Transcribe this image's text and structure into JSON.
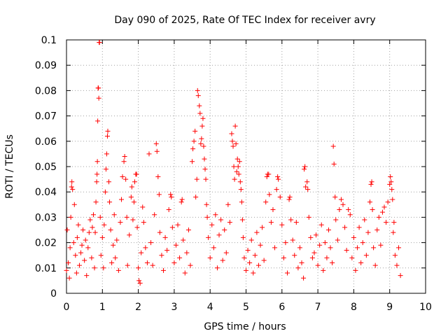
{
  "chart_data": {
    "type": "scatter",
    "title": "Day 090 of 2025, Rate Of TEC Index for receiver avry",
    "xlabel": "GPS time / hours",
    "ylabel": "ROTI / TECUs",
    "xlim": [
      0,
      10
    ],
    "ylim": [
      0,
      0.1
    ],
    "x_ticks": [
      "0",
      "1",
      "2",
      "3",
      "4",
      "5",
      "6",
      "7",
      "8",
      "9",
      "10"
    ],
    "y_ticks": [
      "0",
      "0.01",
      "0.02",
      "0.03",
      "0.04",
      "0.05",
      "0.06",
      "0.07",
      "0.08",
      "0.09",
      "0.1"
    ],
    "grid": true,
    "marker": "+",
    "series_color": "#ff0000",
    "series": [
      {
        "name": "ROTI",
        "points": [
          [
            0.0,
            0.009
          ],
          [
            0.02,
            0.025
          ],
          [
            0.05,
            0.012
          ],
          [
            0.08,
            0.006
          ],
          [
            0.1,
            0.018
          ],
          [
            0.12,
            0.03
          ],
          [
            0.14,
            0.042
          ],
          [
            0.15,
            0.044
          ],
          [
            0.17,
            0.041
          ],
          [
            0.2,
            0.02
          ],
          [
            0.22,
            0.035
          ],
          [
            0.25,
            0.015
          ],
          [
            0.28,
            0.008
          ],
          [
            0.3,
            0.022
          ],
          [
            0.33,
            0.027
          ],
          [
            0.36,
            0.011
          ],
          [
            0.4,
            0.016
          ],
          [
            0.43,
            0.019
          ],
          [
            0.46,
            0.025
          ],
          [
            0.5,
            0.013
          ],
          [
            0.53,
            0.021
          ],
          [
            0.56,
            0.007
          ],
          [
            0.6,
            0.018
          ],
          [
            0.63,
            0.024
          ],
          [
            0.66,
            0.029
          ],
          [
            0.7,
            0.014
          ],
          [
            0.72,
            0.026
          ],
          [
            0.75,
            0.031
          ],
          [
            0.78,
            0.01
          ],
          [
            0.8,
            0.024
          ],
          [
            0.82,
            0.036
          ],
          [
            0.84,
            0.044
          ],
          [
            0.85,
            0.047
          ],
          [
            0.86,
            0.052
          ],
          [
            0.87,
            0.068
          ],
          [
            0.88,
            0.081
          ],
          [
            0.89,
            0.081
          ],
          [
            0.9,
            0.077
          ],
          [
            0.91,
            0.099
          ],
          [
            0.92,
            0.099
          ],
          [
            0.94,
            0.03
          ],
          [
            0.96,
            0.015
          ],
          [
            1.0,
            0.022
          ],
          [
            1.03,
            0.01
          ],
          [
            1.05,
            0.027
          ],
          [
            1.08,
            0.04
          ],
          [
            1.1,
            0.049
          ],
          [
            1.12,
            0.055
          ],
          [
            1.14,
            0.062
          ],
          [
            1.15,
            0.064
          ],
          [
            1.18,
            0.044
          ],
          [
            1.2,
            0.036
          ],
          [
            1.23,
            0.025
          ],
          [
            1.26,
            0.012
          ],
          [
            1.3,
            0.019
          ],
          [
            1.33,
            0.031
          ],
          [
            1.36,
            0.014
          ],
          [
            1.4,
            0.021
          ],
          [
            1.45,
            0.009
          ],
          [
            1.5,
            0.028
          ],
          [
            1.53,
            0.037
          ],
          [
            1.56,
            0.046
          ],
          [
            1.6,
            0.052
          ],
          [
            1.62,
            0.054
          ],
          [
            1.65,
            0.045
          ],
          [
            1.68,
            0.03
          ],
          [
            1.7,
            0.011
          ],
          [
            1.75,
            0.023
          ],
          [
            1.8,
            0.038
          ],
          [
            1.82,
            0.042
          ],
          [
            1.85,
            0.029
          ],
          [
            1.88,
            0.036
          ],
          [
            1.9,
            0.044
          ],
          [
            1.93,
            0.047
          ],
          [
            1.95,
            0.047
          ],
          [
            1.97,
            0.026
          ],
          [
            2.0,
            0.01
          ],
          [
            2.02,
            0.005
          ],
          [
            2.05,
            0.004
          ],
          [
            2.08,
            0.016
          ],
          [
            2.12,
            0.034
          ],
          [
            2.15,
            0.028
          ],
          [
            2.2,
            0.018
          ],
          [
            2.25,
            0.012
          ],
          [
            2.3,
            0.055
          ],
          [
            2.35,
            0.02
          ],
          [
            2.4,
            0.011
          ],
          [
            2.45,
            0.031
          ],
          [
            2.5,
            0.059
          ],
          [
            2.52,
            0.056
          ],
          [
            2.55,
            0.046
          ],
          [
            2.58,
            0.039
          ],
          [
            2.6,
            0.024
          ],
          [
            2.65,
            0.015
          ],
          [
            2.7,
            0.009
          ],
          [
            2.75,
            0.022
          ],
          [
            2.8,
            0.017
          ],
          [
            2.85,
            0.033
          ],
          [
            2.9,
            0.039
          ],
          [
            2.92,
            0.038
          ],
          [
            2.95,
            0.026
          ],
          [
            3.0,
            0.012
          ],
          [
            3.05,
            0.019
          ],
          [
            3.1,
            0.027
          ],
          [
            3.15,
            0.014
          ],
          [
            3.2,
            0.036
          ],
          [
            3.22,
            0.037
          ],
          [
            3.25,
            0.021
          ],
          [
            3.3,
            0.008
          ],
          [
            3.35,
            0.016
          ],
          [
            3.4,
            0.025
          ],
          [
            3.45,
            0.011
          ],
          [
            3.5,
            0.052
          ],
          [
            3.52,
            0.057
          ],
          [
            3.55,
            0.06
          ],
          [
            3.58,
            0.064
          ],
          [
            3.6,
            0.038
          ],
          [
            3.63,
            0.045
          ],
          [
            3.65,
            0.08
          ],
          [
            3.67,
            0.078
          ],
          [
            3.7,
            0.074
          ],
          [
            3.72,
            0.071
          ],
          [
            3.74,
            0.059
          ],
          [
            3.76,
            0.061
          ],
          [
            3.78,
            0.066
          ],
          [
            3.8,
            0.069
          ],
          [
            3.82,
            0.058
          ],
          [
            3.84,
            0.053
          ],
          [
            3.86,
            0.049
          ],
          [
            3.88,
            0.045
          ],
          [
            3.9,
            0.035
          ],
          [
            3.92,
            0.03
          ],
          [
            3.95,
            0.022
          ],
          [
            4.0,
            0.014
          ],
          [
            4.05,
            0.027
          ],
          [
            4.1,
            0.018
          ],
          [
            4.15,
            0.031
          ],
          [
            4.2,
            0.01
          ],
          [
            4.25,
            0.023
          ],
          [
            4.3,
            0.029
          ],
          [
            4.35,
            0.013
          ],
          [
            4.4,
            0.025
          ],
          [
            4.45,
            0.016
          ],
          [
            4.5,
            0.035
          ],
          [
            4.55,
            0.028
          ],
          [
            4.6,
            0.063
          ],
          [
            4.62,
            0.06
          ],
          [
            4.64,
            0.058
          ],
          [
            4.66,
            0.05
          ],
          [
            4.68,
            0.045
          ],
          [
            4.7,
            0.066
          ],
          [
            4.72,
            0.059
          ],
          [
            4.74,
            0.048
          ],
          [
            4.76,
            0.053
          ],
          [
            4.78,
            0.05
          ],
          [
            4.8,
            0.047
          ],
          [
            4.82,
            0.052
          ],
          [
            4.84,
            0.044
          ],
          [
            4.86,
            0.041
          ],
          [
            4.88,
            0.036
          ],
          [
            4.9,
            0.029
          ],
          [
            4.92,
            0.022
          ],
          [
            4.95,
            0.014
          ],
          [
            5.0,
            0.009
          ],
          [
            5.05,
            0.017
          ],
          [
            5.1,
            0.012
          ],
          [
            5.15,
            0.021
          ],
          [
            5.2,
            0.008
          ],
          [
            5.25,
            0.015
          ],
          [
            5.3,
            0.024
          ],
          [
            5.35,
            0.011
          ],
          [
            5.4,
            0.019
          ],
          [
            5.45,
            0.026
          ],
          [
            5.5,
            0.013
          ],
          [
            5.55,
            0.036
          ],
          [
            5.58,
            0.046
          ],
          [
            5.6,
            0.047
          ],
          [
            5.63,
            0.047
          ],
          [
            5.65,
            0.039
          ],
          [
            5.7,
            0.028
          ],
          [
            5.75,
            0.033
          ],
          [
            5.8,
            0.018
          ],
          [
            5.85,
            0.041
          ],
          [
            5.88,
            0.046
          ],
          [
            5.9,
            0.045
          ],
          [
            5.95,
            0.038
          ],
          [
            6.0,
            0.027
          ],
          [
            6.05,
            0.014
          ],
          [
            6.1,
            0.02
          ],
          [
            6.15,
            0.008
          ],
          [
            6.2,
            0.037
          ],
          [
            6.22,
            0.038
          ],
          [
            6.25,
            0.029
          ],
          [
            6.3,
            0.021
          ],
          [
            6.35,
            0.015
          ],
          [
            6.4,
            0.028
          ],
          [
            6.45,
            0.01
          ],
          [
            6.5,
            0.018
          ],
          [
            6.55,
            0.012
          ],
          [
            6.6,
            0.006
          ],
          [
            6.62,
            0.049
          ],
          [
            6.64,
            0.05
          ],
          [
            6.66,
            0.042
          ],
          [
            6.7,
            0.044
          ],
          [
            6.72,
            0.041
          ],
          [
            6.75,
            0.03
          ],
          [
            6.8,
            0.022
          ],
          [
            6.85,
            0.014
          ],
          [
            6.9,
            0.016
          ],
          [
            6.95,
            0.023
          ],
          [
            7.0,
            0.011
          ],
          [
            7.05,
            0.019
          ],
          [
            7.1,
            0.027
          ],
          [
            7.15,
            0.009
          ],
          [
            7.2,
            0.02
          ],
          [
            7.25,
            0.014
          ],
          [
            7.3,
            0.025
          ],
          [
            7.35,
            0.018
          ],
          [
            7.4,
            0.012
          ],
          [
            7.43,
            0.058
          ],
          [
            7.45,
            0.051
          ],
          [
            7.48,
            0.038
          ],
          [
            7.5,
            0.029
          ],
          [
            7.55,
            0.021
          ],
          [
            7.6,
            0.033
          ],
          [
            7.65,
            0.037
          ],
          [
            7.7,
            0.035
          ],
          [
            7.75,
            0.026
          ],
          [
            7.8,
            0.017
          ],
          [
            7.85,
            0.033
          ],
          [
            7.9,
            0.031
          ],
          [
            7.95,
            0.014
          ],
          [
            8.0,
            0.022
          ],
          [
            8.05,
            0.009
          ],
          [
            8.1,
            0.018
          ],
          [
            8.15,
            0.026
          ],
          [
            8.2,
            0.012
          ],
          [
            8.25,
            0.02
          ],
          [
            8.3,
            0.029
          ],
          [
            8.35,
            0.015
          ],
          [
            8.4,
            0.024
          ],
          [
            8.45,
            0.036
          ],
          [
            8.48,
            0.043
          ],
          [
            8.5,
            0.044
          ],
          [
            8.52,
            0.033
          ],
          [
            8.55,
            0.018
          ],
          [
            8.6,
            0.011
          ],
          [
            8.65,
            0.025
          ],
          [
            8.7,
            0.03
          ],
          [
            8.75,
            0.019
          ],
          [
            8.8,
            0.032
          ],
          [
            8.85,
            0.034
          ],
          [
            8.9,
            0.028
          ],
          [
            8.95,
            0.036
          ],
          [
            9.0,
            0.043
          ],
          [
            9.02,
            0.046
          ],
          [
            9.04,
            0.044
          ],
          [
            9.06,
            0.041
          ],
          [
            9.08,
            0.037
          ],
          [
            9.1,
            0.024
          ],
          [
            9.12,
            0.028
          ],
          [
            9.15,
            0.015
          ],
          [
            9.2,
            0.011
          ],
          [
            9.25,
            0.018
          ],
          [
            9.3,
            0.007
          ]
        ]
      }
    ]
  }
}
